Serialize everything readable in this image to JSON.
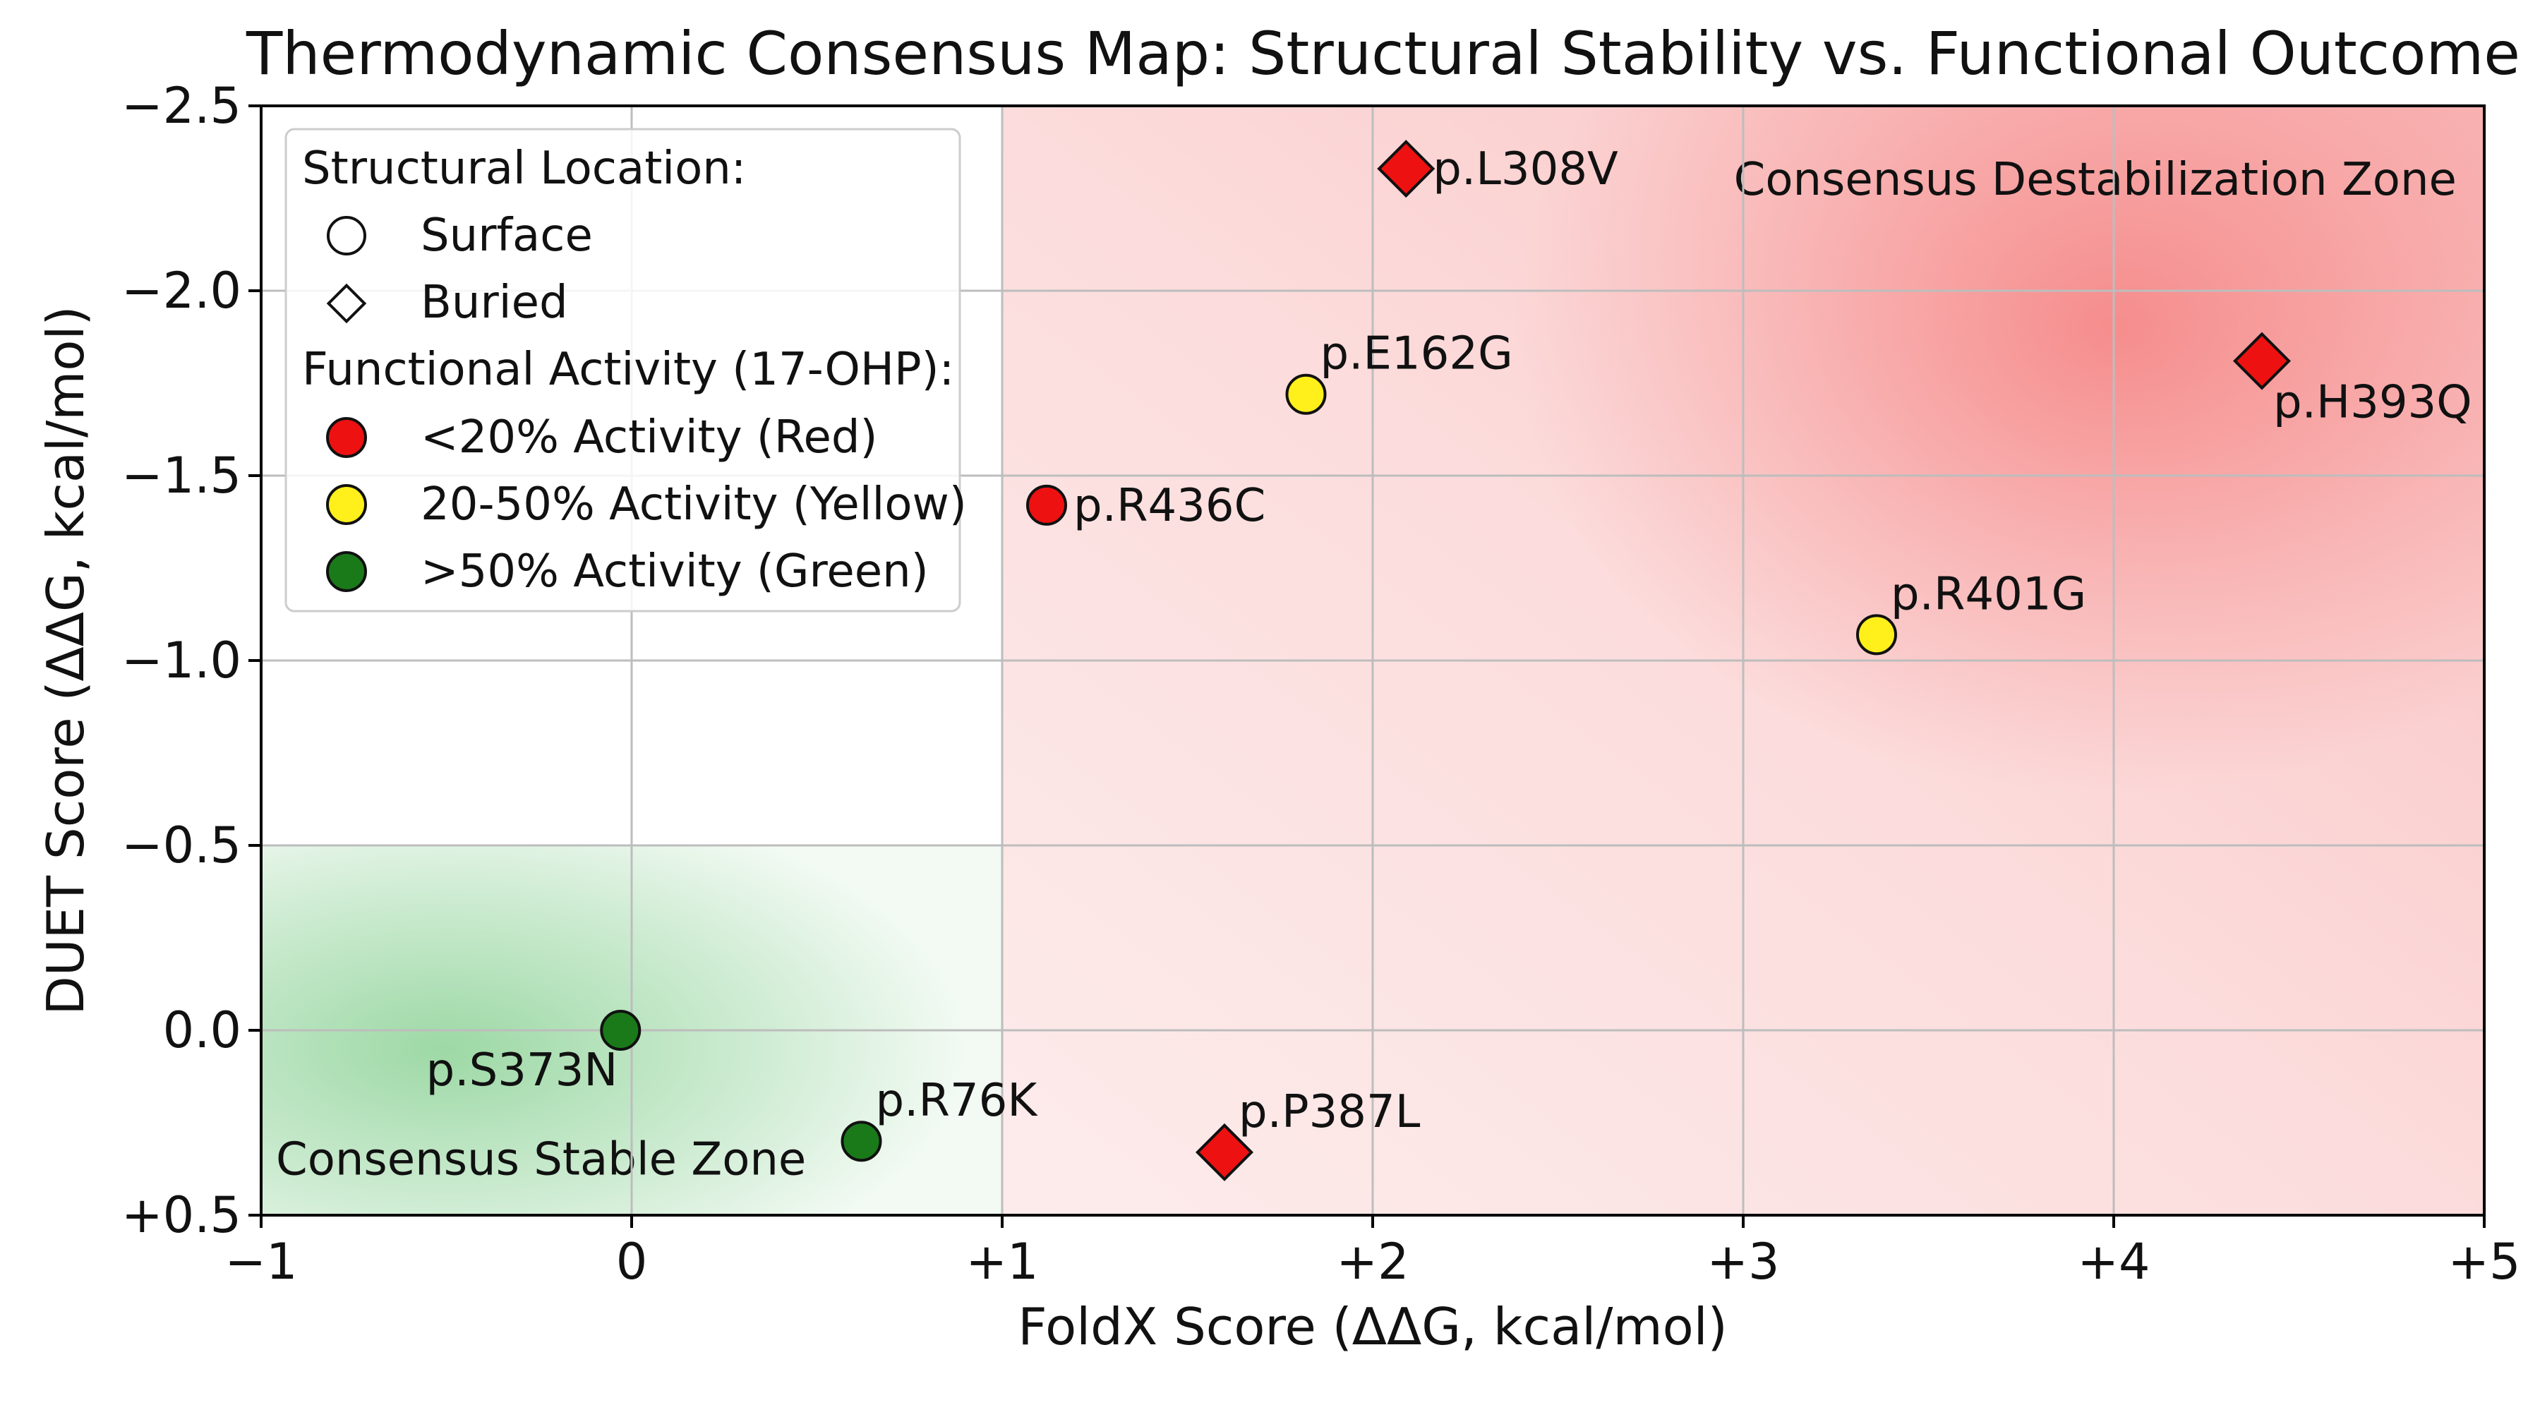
{
  "chart_data": {
    "type": "scatter",
    "title": "Thermodynamic Consensus Map: Structural Stability vs. Functional Outcome",
    "xlabel": "FoldX Score (ΔΔG, kcal/mol)",
    "ylabel": "DUET Score (ΔΔG, kcal/mol)",
    "xlim": [
      -1,
      5
    ],
    "ylim": [
      0.5,
      -2.5
    ],
    "x_ticks": [
      {
        "value": -1,
        "label": "−1"
      },
      {
        "value": 0,
        "label": "0"
      },
      {
        "value": 1,
        "label": "+1"
      },
      {
        "value": 2,
        "label": "+2"
      },
      {
        "value": 3,
        "label": "+3"
      },
      {
        "value": 4,
        "label": "+4"
      },
      {
        "value": 5,
        "label": "+5"
      }
    ],
    "y_ticks": [
      {
        "value": -2.5,
        "label": "−2.5"
      },
      {
        "value": -2.0,
        "label": "−2.0"
      },
      {
        "value": -1.5,
        "label": "−1.5"
      },
      {
        "value": -1.0,
        "label": "−1.0"
      },
      {
        "value": -0.5,
        "label": "−0.5"
      },
      {
        "value": 0.0,
        "label": "0.0"
      },
      {
        "value": 0.5,
        "label": "+0.5"
      }
    ],
    "grid": true,
    "colors": {
      "red": "#ee1111",
      "yellow": "#ffef1a",
      "green": "#1a7a1a",
      "destab_zone": "#f25a5a",
      "stable_zone": "#5cbf6a"
    },
    "points": [
      {
        "label": "p.L308V",
        "x": 2.09,
        "y": -2.33,
        "location": "buried",
        "activity": "red",
        "label_pos": "right"
      },
      {
        "label": "p.H393Q",
        "x": 4.4,
        "y": -1.81,
        "location": "buried",
        "activity": "red",
        "label_pos": "below-right"
      },
      {
        "label": "p.E162G",
        "x": 1.82,
        "y": -1.72,
        "location": "surface",
        "activity": "yellow",
        "label_pos": "above-right"
      },
      {
        "label": "p.R436C",
        "x": 1.12,
        "y": -1.42,
        "location": "surface",
        "activity": "red",
        "label_pos": "right"
      },
      {
        "label": "p.R401G",
        "x": 3.36,
        "y": -1.07,
        "location": "surface",
        "activity": "yellow",
        "label_pos": "above-right"
      },
      {
        "label": "p.S373N",
        "x": -0.03,
        "y": 0.0,
        "location": "surface",
        "activity": "green",
        "label_pos": "below-left"
      },
      {
        "label": "p.R76K",
        "x": 0.62,
        "y": 0.3,
        "location": "surface",
        "activity": "green",
        "label_pos": "above-right"
      },
      {
        "label": "p.P387L",
        "x": 1.6,
        "y": 0.33,
        "location": "buried",
        "activity": "red",
        "label_pos": "above-right"
      }
    ],
    "zones": [
      {
        "name": "destabilization",
        "label": "Consensus Destabilization Zone",
        "x_range": [
          1,
          5
        ],
        "y_range": [
          0.5,
          -2.5
        ]
      },
      {
        "name": "stable",
        "label": "Consensus Stable Zone",
        "x_range": [
          -1,
          1
        ],
        "y_range": [
          0.5,
          -0.5
        ]
      }
    ],
    "legend": {
      "placement": "top-left",
      "location_title": "Structural Location:",
      "location_items": [
        {
          "shape": "circle",
          "label": "Surface"
        },
        {
          "shape": "diamond",
          "label": "Buried"
        }
      ],
      "activity_title": "Functional Activity (17-OHP):",
      "activity_items": [
        {
          "color": "red",
          "label": "<20% Activity (Red)"
        },
        {
          "color": "yellow",
          "label": "20-50% Activity (Yellow)"
        },
        {
          "color": "green",
          "label": ">50% Activity (Green)"
        }
      ]
    }
  }
}
